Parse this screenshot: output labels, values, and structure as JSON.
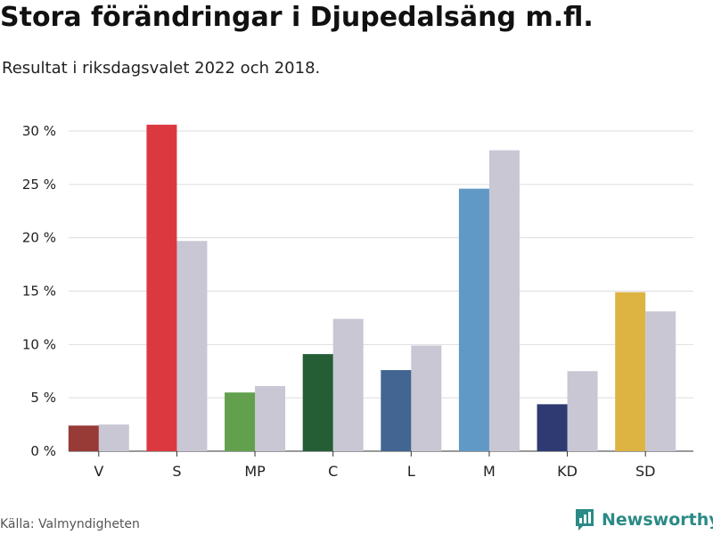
{
  "header": {
    "title": "Stora förändringar i Djupedalsäng m.fl.",
    "subtitle": "Resultat i riksdagsvalet 2022 och 2018."
  },
  "footer": {
    "source": "Källa: Valmyndigheten",
    "brand": "Newsworthy",
    "brand_icon": "bar-chart-speech-bubble-icon"
  },
  "chart_data": {
    "type": "bar",
    "categories": [
      "V",
      "S",
      "MP",
      "C",
      "L",
      "M",
      "KD",
      "SD"
    ],
    "series": [
      {
        "name": "2022",
        "values": [
          2.4,
          30.6,
          5.5,
          9.1,
          7.6,
          24.6,
          4.4,
          14.9
        ],
        "colors": [
          "#983A36",
          "#DC3840",
          "#62A04D",
          "#255E35",
          "#436591",
          "#6098C6",
          "#2F3A72",
          "#DDB342"
        ]
      },
      {
        "name": "2018",
        "values": [
          2.5,
          19.7,
          6.1,
          12.4,
          9.9,
          28.2,
          7.5,
          13.1
        ],
        "color": "#C9C7D4"
      }
    ],
    "ylim": [
      0,
      30
    ],
    "yticks": [
      0,
      5,
      10,
      15,
      20,
      25,
      30
    ],
    "ytick_labels": [
      "0 %",
      "5 %",
      "10 %",
      "15 %",
      "20 %",
      "25 %",
      "30 %"
    ],
    "grid": true,
    "xlabel": "",
    "ylabel": ""
  }
}
